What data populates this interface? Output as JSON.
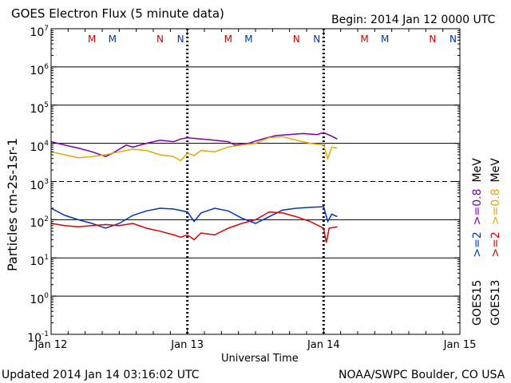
{
  "header": {
    "title": "GOES Electron Flux (5 minute data)",
    "begin": "Begin: 2014 Jan 12 0000 UTC"
  },
  "footer": {
    "updated": "Updated 2014 Jan 14 03:16:02 UTC",
    "credit": "NOAA/SWPC Boulder, CO USA"
  },
  "colors": {
    "goes15_high": "#7b00a8",
    "goes13_high": "#e8a600",
    "goes15_low": "#0033cc",
    "goes13_low": "#e00000",
    "marker_M": "#cc0000",
    "marker_N": "#0033aa",
    "marker_M2": "#0033aa",
    "marker_N1": "#cc0000"
  },
  "chart_data": {
    "type": "line",
    "title": "GOES Electron Flux (5 minute data)",
    "xlabel": "Universal Time",
    "ylabel": "Particles cm-2s-1sr-1",
    "yscale": "log",
    "ylim": [
      0.1,
      10000000
    ],
    "xlim_days": [
      0,
      3
    ],
    "x_tick_labels": [
      "Jan 12",
      "Jan 13",
      "Jan 14",
      "Jan 15"
    ],
    "y_tick_labels": [
      {
        "base": "10",
        "exp": "7"
      },
      {
        "base": "10",
        "exp": "6"
      },
      {
        "base": "10",
        "exp": "5"
      },
      {
        "base": "10",
        "exp": "4"
      },
      {
        "base": "10",
        "exp": "3"
      },
      {
        "base": "10",
        "exp": "2"
      },
      {
        "base": "10",
        "exp": "1"
      },
      {
        "base": "10",
        "exp": "0"
      },
      {
        "base": "10",
        "exp": "-1"
      }
    ],
    "threshold_line": 1000,
    "day_markers": [
      {
        "label": "M",
        "x": 0.3,
        "role": "marker_M"
      },
      {
        "label": "M",
        "x": 0.45,
        "role": "marker_M2"
      },
      {
        "label": "N",
        "x": 0.8,
        "role": "marker_N1"
      },
      {
        "label": "N",
        "x": 0.95,
        "role": "marker_N"
      },
      {
        "label": "M",
        "x": 1.3,
        "role": "marker_M"
      },
      {
        "label": "M",
        "x": 1.45,
        "role": "marker_M2"
      },
      {
        "label": "N",
        "x": 1.8,
        "role": "marker_N1"
      },
      {
        "label": "N",
        "x": 1.95,
        "role": "marker_N"
      },
      {
        "label": "M",
        "x": 2.3,
        "role": "marker_M"
      },
      {
        "label": "M",
        "x": 2.45,
        "role": "marker_M2"
      },
      {
        "label": "N",
        "x": 2.8,
        "role": "marker_N1"
      },
      {
        "label": "N",
        "x": 2.95,
        "role": "marker_N"
      }
    ],
    "legend": [
      {
        "text": "GOES15",
        "role": "text"
      },
      {
        "text": ">=2",
        "role": "goes15_low"
      },
      {
        "text": ">=0.8",
        "role": "goes15_high"
      },
      {
        "text": "MeV",
        "role": "text"
      },
      {
        "text": "GOES13",
        "role": "text"
      },
      {
        "text": ">=2",
        "role": "goes13_low"
      },
      {
        "text": ">=0.8",
        "role": "goes13_high"
      },
      {
        "text": "MeV",
        "role": "text"
      }
    ],
    "series": [
      {
        "name": "GOES15 >=0.8 MeV",
        "role": "goes15_high",
        "x": [
          0,
          0.1,
          0.2,
          0.3,
          0.4,
          0.45,
          0.55,
          0.6,
          0.7,
          0.8,
          0.9,
          0.95,
          1.0,
          1.1,
          1.2,
          1.3,
          1.35,
          1.45,
          1.55,
          1.65,
          1.75,
          1.85,
          1.95,
          2.0,
          2.05,
          2.1
        ],
        "values": [
          11000,
          9000,
          7500,
          6000,
          4500,
          5500,
          9000,
          8000,
          10000,
          12000,
          11000,
          13000,
          14000,
          13000,
          12000,
          11000,
          9000,
          10000,
          13000,
          16000,
          17000,
          18000,
          17000,
          19000,
          16000,
          13000
        ]
      },
      {
        "name": "GOES13 >=0.8 MeV",
        "role": "goes13_high",
        "x": [
          0,
          0.1,
          0.2,
          0.3,
          0.4,
          0.5,
          0.6,
          0.7,
          0.8,
          0.9,
          0.95,
          1.0,
          1.05,
          1.1,
          1.2,
          1.3,
          1.4,
          1.5,
          1.6,
          1.7,
          1.8,
          1.9,
          2.0,
          2.03,
          2.06,
          2.1
        ],
        "values": [
          6000,
          5000,
          4200,
          4500,
          5000,
          6000,
          7000,
          6500,
          5000,
          4500,
          3500,
          5500,
          4800,
          6500,
          6000,
          8000,
          9000,
          10000,
          14000,
          15000,
          12000,
          10000,
          9000,
          4000,
          8000,
          7500
        ]
      },
      {
        "name": "GOES15 >=2 MeV",
        "role": "goes15_low",
        "x": [
          0,
          0.1,
          0.2,
          0.3,
          0.4,
          0.5,
          0.6,
          0.7,
          0.8,
          0.9,
          1.0,
          1.05,
          1.1,
          1.2,
          1.3,
          1.4,
          1.5,
          1.6,
          1.7,
          1.8,
          1.9,
          2.0,
          2.03,
          2.06,
          2.1
        ],
        "values": [
          200,
          130,
          100,
          80,
          60,
          80,
          130,
          170,
          200,
          190,
          160,
          90,
          150,
          200,
          170,
          110,
          80,
          120,
          180,
          200,
          210,
          220,
          90,
          140,
          120
        ]
      },
      {
        "name": "GOES13 >=2 MeV",
        "role": "goes13_low",
        "x": [
          0,
          0.1,
          0.2,
          0.3,
          0.4,
          0.5,
          0.6,
          0.7,
          0.8,
          0.9,
          0.95,
          1.0,
          1.05,
          1.1,
          1.2,
          1.3,
          1.4,
          1.5,
          1.6,
          1.7,
          1.8,
          1.9,
          2.0,
          2.02,
          2.04,
          2.1
        ],
        "values": [
          80,
          70,
          65,
          70,
          75,
          70,
          80,
          60,
          50,
          40,
          35,
          40,
          30,
          45,
          40,
          60,
          80,
          100,
          160,
          150,
          120,
          90,
          60,
          25,
          60,
          65
        ]
      }
    ]
  }
}
